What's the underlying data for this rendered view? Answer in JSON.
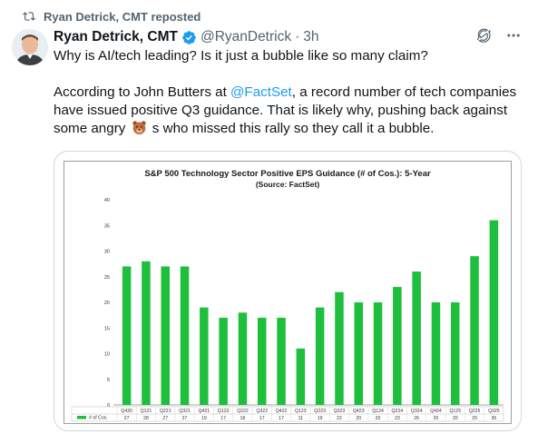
{
  "repost": {
    "label": "Ryan Detrick, CMT reposted",
    "icon": "repost-icon"
  },
  "author": {
    "display_name": "Ryan Detrick, CMT",
    "handle": "@RyanDetrick",
    "separator": "·",
    "time": "3h",
    "verified_color": "#1d9bf0"
  },
  "tweet": {
    "line1": "Why is AI/tech leading? Is it just a bubble like so many claim?",
    "p2_before": "According to John Butters at ",
    "p2_mention": "@FactSet",
    "p2_after": ", a record number of tech companies have issued positive Q3 guidance. That is likely why, pushing  back against some angry ",
    "p2_emoji": "bear-emoji",
    "p2_end": " s who missed this rally so they call  it a bubble."
  },
  "chart_data": {
    "type": "bar",
    "title": "S&P 500 Technology Sector Positive EPS Guidance (# of Cos.): 5-Year",
    "subtitle": "(Source: FactSet)",
    "categories": [
      "Q420",
      "Q121",
      "Q221",
      "Q321",
      "Q421",
      "Q122",
      "Q222",
      "Q322",
      "Q422",
      "Q123",
      "Q223",
      "Q323",
      "Q423",
      "Q124",
      "Q224",
      "Q324",
      "Q424",
      "Q125",
      "Q225",
      "Q325"
    ],
    "series": [
      {
        "name": "# of Cos.",
        "values": [
          27,
          28,
          27,
          27,
          19,
          17,
          18,
          17,
          17,
          11,
          19,
          22,
          20,
          20,
          23,
          26,
          20,
          20,
          29,
          36
        ],
        "color": "#1fbf3e"
      }
    ],
    "ylim": [
      0,
      40
    ],
    "yticks": [
      0,
      5,
      10,
      15,
      20,
      25,
      30,
      35,
      40
    ],
    "grid": false,
    "legend": "bottom-left table"
  }
}
